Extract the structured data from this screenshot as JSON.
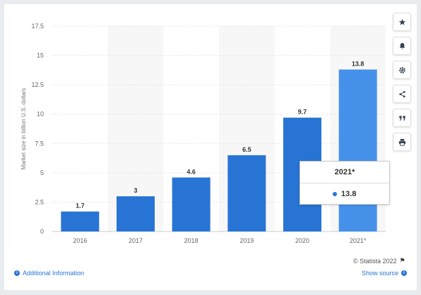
{
  "chart_data": {
    "type": "bar",
    "categories": [
      "2016",
      "2017",
      "2018",
      "2019",
      "2020",
      "2021*"
    ],
    "values": [
      1.7,
      3,
      4.6,
      6.5,
      9.7,
      13.8
    ],
    "data_labels": [
      "1.7",
      "3",
      "4.6",
      "6.5",
      "9.7",
      "13.8"
    ],
    "ylabel": "Market size in billion U.S. dollars",
    "ylim": [
      0,
      17.5
    ],
    "yticks": [
      0,
      2.5,
      5,
      7.5,
      10,
      12.5,
      15,
      17.5
    ],
    "ytick_labels": [
      "0",
      "2.5",
      "5",
      "7.5",
      "10",
      "12.5",
      "15",
      "17.5"
    ],
    "grid": true,
    "bar_color": "#2874d5",
    "highlight_color": "#4591ea",
    "highlight_index": 5
  },
  "tooltip": {
    "title": "2021*",
    "value": "13.8"
  },
  "toolbar": {
    "buttons": [
      {
        "name": "favorite-button",
        "icon": "star-icon"
      },
      {
        "name": "notification-button",
        "icon": "bell-icon"
      },
      {
        "name": "settings-button",
        "icon": "gear-icon"
      },
      {
        "name": "share-button",
        "icon": "share-icon"
      },
      {
        "name": "cite-button",
        "icon": "quote-icon"
      },
      {
        "name": "print-button",
        "icon": "print-icon"
      }
    ]
  },
  "footer": {
    "copyright": "© Statista 2022",
    "additional_info": "Additional Information",
    "show_source": "Show source"
  }
}
